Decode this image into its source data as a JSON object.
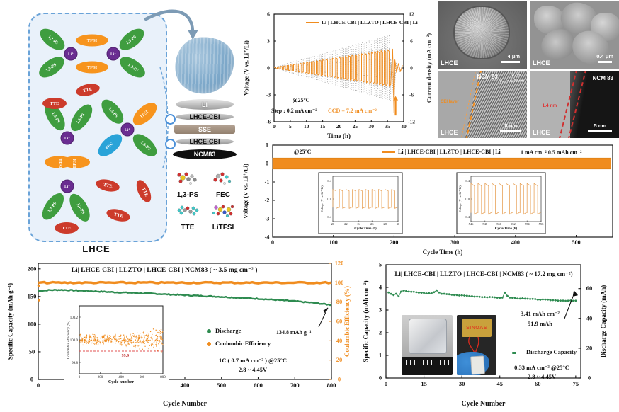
{
  "schematic": {
    "caption": "LHCE",
    "labels": {
      "ps": "1,3-PS",
      "tfsi": "TFSI",
      "tte": "TTE",
      "fec": "FEC",
      "li": "Li⁺"
    },
    "stack": [
      "Li",
      "LHCE-CBI",
      "SSE",
      "LHCE-CBI",
      "NCM83"
    ],
    "molecule_labels": [
      "1,3-PS",
      "FEC",
      "TTE",
      "LiTFSI"
    ]
  },
  "sem": {
    "images": [
      {
        "label": "LHCE",
        "scale": "4 μm"
      },
      {
        "label": "LHCE",
        "scale": "0.4 μm"
      },
      {
        "label": "NCM 83",
        "detail1": "R-3m",
        "detail2": "d₀₀₃= 0.48 nm",
        "cei": "CEI layer",
        "corner": "LHCE",
        "scale": "8 nm"
      },
      {
        "label": "NCM 83",
        "annotation": "1.4 nm",
        "corner": "LHCE",
        "scale": "5 nm"
      }
    ]
  },
  "chart_data": [
    {
      "id": "ccd_test",
      "type": "line",
      "legend": "Li | LHCE-CBI | LLZTO | LHCE-CBI | Li",
      "xlabel": "Time (h)",
      "xlim": [
        0,
        40
      ],
      "xticks": [
        0,
        5,
        10,
        15,
        20,
        25,
        30,
        35,
        40
      ],
      "ylabel_left": "Voltage (V vs. Li⁺/Li)",
      "ylim_left": [
        -6,
        6
      ],
      "yticks_left": [
        -6,
        -3,
        0,
        3,
        6
      ],
      "ylabel_right": "Current density (mA cm⁻²)",
      "ylim_right": [
        -12,
        12
      ],
      "yticks_right": [
        -12,
        -6,
        0,
        6,
        12
      ],
      "note_temp": "@25°C",
      "note_step": "Step : 0.2 mA cm⁻²",
      "note_ccd": "CCD = 7.2 mA cm⁻²",
      "params": {
        "current_step_mA_cm2": 0.2,
        "ccd_mA_cm2": 7.2,
        "steps": 36,
        "ccd_time_h": 37,
        "v_amp_start": 0.06,
        "v_amp_end": 2.05,
        "v_spike": -5.0
      }
    },
    {
      "id": "li_symmetric_cycling",
      "type": "line",
      "legend": "Li | LHCE-CBI | LLZTO | LHCE-CBI | Li",
      "note_temp": "@25°C",
      "conditions": "1 mA cm⁻²    0.5 mAh cm⁻²",
      "xlabel": "Cycle Time (h)",
      "xlim": [
        0,
        560
      ],
      "xticks": [
        0,
        100,
        200,
        300,
        400,
        500
      ],
      "ylabel": "Voltage (V vs. Li⁺/Li)",
      "ylim": [
        -4,
        1
      ],
      "yticks": [
        1,
        0,
        -1,
        -2,
        -3,
        -4
      ],
      "band": {
        "v_max": 0.3,
        "v_min": -0.3,
        "t_end": 557
      },
      "insets": [
        {
          "xlabel": "Cycle Time (h)",
          "ylabel": "Voltage (V vs. Li⁺/Li)",
          "xticks": [
            "20",
            "22",
            "24",
            "26",
            "28",
            "30"
          ],
          "yticks": [
            "0.4",
            "0.0",
            "-0.4"
          ],
          "amplitude": 0.21,
          "cycles": 10
        },
        {
          "xlabel": "Cycle Time (h)",
          "ylabel": "Voltage (V vs. Li⁺/Li)",
          "xticks": [
            "546",
            "548",
            "550",
            "552",
            "554",
            "556"
          ],
          "yticks": [
            "0.4",
            "0.0",
            "-0.4"
          ],
          "amplitude": 0.34,
          "cycles": 10
        }
      ]
    },
    {
      "id": "ncm83_long_cycling",
      "type": "scatter",
      "title": "Li| LHCE-CBI | LLZTO | LHCE-CBI | NCM83 ( ~ 3.5 mg cm⁻² )",
      "xlabel": "Cycle Number",
      "xlim": [
        0,
        800
      ],
      "xticks": [
        0,
        100,
        200,
        300,
        400,
        500,
        600,
        700,
        800
      ],
      "ylabel_left": "Specific Capacity (mAh g⁻¹)",
      "ylim_left": [
        0,
        210
      ],
      "yticks_left": [
        0,
        50,
        100,
        150,
        200
      ],
      "ylabel_right": "Coulombic Efficiency (%)",
      "ylim_right": [
        0,
        120
      ],
      "yticks_right": [
        0,
        20,
        40,
        60,
        80,
        100,
        120
      ],
      "legend": [
        "Discharge",
        "Coulombic Efficiency"
      ],
      "conditions": [
        "1C ( 0.7 mA cm⁻² )  @25°C",
        "2.8 ~ 4.45V"
      ],
      "final_capacity_label": "134.8 mAh g⁻¹",
      "series": [
        {
          "name": "Discharge",
          "keypoints": [
            [
              0,
              160
            ],
            [
              30,
              161.5
            ],
            [
              60,
              162
            ],
            [
              120,
              160.5
            ],
            [
              200,
              158
            ],
            [
              300,
              155.5
            ],
            [
              400,
              152.5
            ],
            [
              500,
              149.5
            ],
            [
              600,
              146
            ],
            [
              700,
              141.5
            ],
            [
              760,
              138
            ],
            [
              800,
              134.8
            ]
          ]
        },
        {
          "name": "Coulombic Efficiency",
          "value_pct": 100,
          "outliers": [
            [
              1,
              97
            ],
            [
              2,
              82
            ]
          ]
        }
      ],
      "inset": {
        "ylabel": "Coulombic efficiency (%)",
        "xlabel": "Cycle number",
        "yticks": [
          "99.8",
          "100.0",
          "100.2"
        ],
        "xticks": [
          0,
          200,
          400,
          600,
          800
        ],
        "reference_value": "99.9"
      }
    },
    {
      "id": "pouch_cell_cycling",
      "type": "scatter",
      "title": "Li| LHCE-CBI | LLZTO | LHCE-CBI | NCM83 ( ~ 17.2 mg cm⁻²)",
      "xlabel": "Cycle Number",
      "xlim": [
        0,
        77
      ],
      "xticks": [
        0,
        15,
        30,
        45,
        60,
        75
      ],
      "ylabel_left": "Specific Capacity (mAh cm⁻²)",
      "ylim_left": [
        0,
        5
      ],
      "yticks_left": [
        0,
        1,
        2,
        3,
        4,
        5
      ],
      "ylabel_right": "Discharge Capacity (mAh)",
      "ylim_right": [
        0,
        76
      ],
      "yticks_right": [
        0,
        20,
        40,
        60
      ],
      "legend": "Discharge Capacity",
      "annotations": [
        "3.41 mAh cm⁻²",
        "51.9 mAh"
      ],
      "conditions": [
        "0.33 mA cm⁻²  @25°C",
        "2.8 ~ 4.45V"
      ],
      "photo_card_text": "SINOAS",
      "series": [
        {
          "name": "Discharge Capacity",
          "keypoints": [
            [
              1,
              3.78
            ],
            [
              2,
              3.72
            ],
            [
              3,
              3.65
            ],
            [
              4,
              3.72
            ],
            [
              5,
              3.6
            ],
            [
              6,
              3.82
            ],
            [
              7,
              3.85
            ],
            [
              9,
              3.82
            ],
            [
              12,
              3.78
            ],
            [
              15,
              3.75
            ],
            [
              18,
              3.73
            ],
            [
              19,
              3.78
            ],
            [
              20,
              3.88
            ],
            [
              21,
              3.78
            ],
            [
              22,
              3.72
            ],
            [
              25,
              3.69
            ],
            [
              28,
              3.66
            ],
            [
              31,
              3.64
            ],
            [
              34,
              3.61
            ],
            [
              37,
              3.59
            ],
            [
              40,
              3.57
            ],
            [
              43,
              3.56
            ],
            [
              46,
              3.54
            ],
            [
              47,
              3.78
            ],
            [
              48,
              3.62
            ],
            [
              49,
              3.55
            ],
            [
              52,
              3.52
            ],
            [
              55,
              3.5
            ],
            [
              58,
              3.48
            ],
            [
              61,
              3.46
            ],
            [
              64,
              3.45
            ],
            [
              67,
              3.43
            ],
            [
              70,
              3.42
            ],
            [
              73,
              3.41
            ],
            [
              75,
              3.41
            ]
          ]
        }
      ]
    }
  ]
}
